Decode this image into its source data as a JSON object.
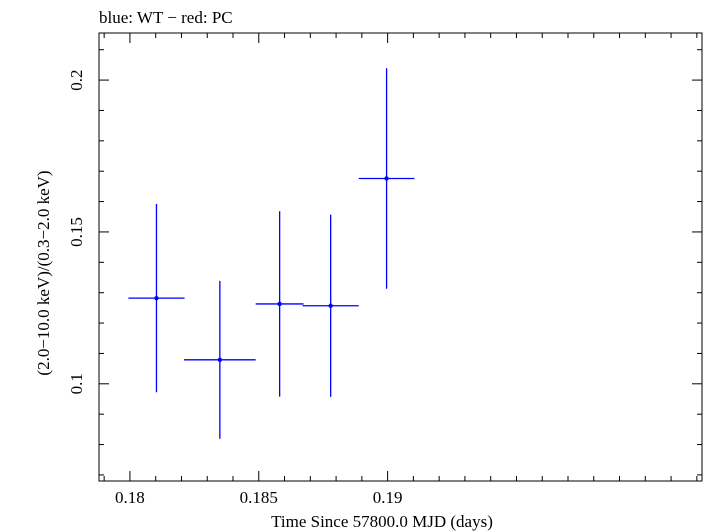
{
  "chart_data": {
    "type": "scatter",
    "title": "blue: WT − red: PC",
    "xlabel": "Time Since 57800.0 MJD (days)",
    "ylabel": "(2.0−10.0 keV)/(0.3−2.0 keV)",
    "xlim": [
      0.1788,
      0.2022
    ],
    "ylim": [
      0.068,
      0.2155
    ],
    "x_ticks": [
      0.18,
      0.185,
      0.19
    ],
    "x_tick_labels": [
      "0.18",
      "0.185",
      "0.19"
    ],
    "y_ticks": [
      0.1,
      0.15,
      0.2
    ],
    "y_tick_labels": [
      "0.1",
      "0.15",
      "0.2"
    ],
    "grid": false,
    "series": [
      {
        "color": "#0000ff",
        "points": [
          {
            "x": 0.18103,
            "xerr": 0.00109,
            "y": 0.1282,
            "yerr_low": 0.031,
            "yerr_high": 0.031
          },
          {
            "x": 0.18349,
            "xerr": 0.00139,
            "y": 0.1079,
            "yerr_low": 0.026,
            "yerr_high": 0.026
          },
          {
            "x": 0.18581,
            "xerr": 0.00093,
            "y": 0.1263,
            "yerr_low": 0.0305,
            "yerr_high": 0.0305
          },
          {
            "x": 0.18779,
            "xerr": 0.00109,
            "y": 0.1257,
            "yerr_low": 0.03,
            "yerr_high": 0.03
          },
          {
            "x": 0.18996,
            "xerr": 0.00108,
            "y": 0.1676,
            "yerr_low": 0.0363,
            "yerr_high": 0.0363
          }
        ]
      }
    ]
  }
}
